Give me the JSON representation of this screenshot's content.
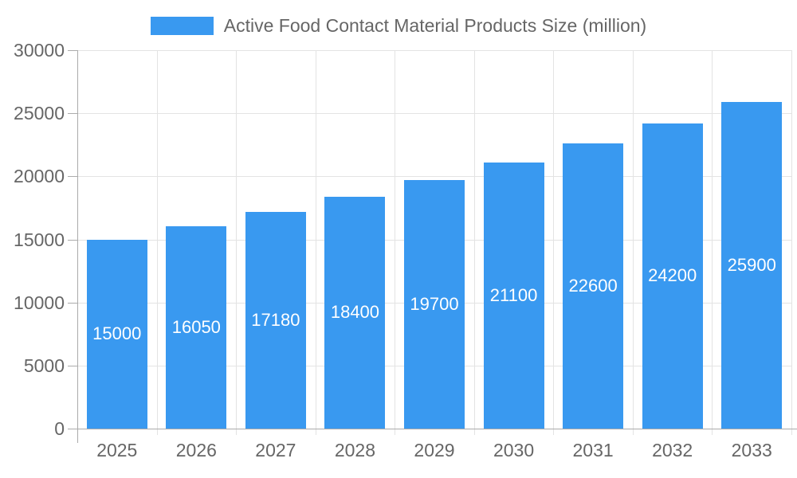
{
  "legend": {
    "label": "Active Food Contact Material Products Size (million)"
  },
  "chart_data": {
    "type": "bar",
    "title": "Active Food Contact Material Products Size (million)",
    "series_name": "Active Food Contact Material Products Size (million)",
    "categories": [
      "2025",
      "2026",
      "2027",
      "2028",
      "2029",
      "2030",
      "2031",
      "2032",
      "2033"
    ],
    "values": [
      15000,
      16050,
      17180,
      18400,
      19700,
      21100,
      22600,
      24200,
      25900
    ],
    "bar_labels": [
      "15000",
      "16050",
      "17180",
      "18400",
      "19700",
      "21100",
      "22600",
      "24200",
      "25900"
    ],
    "xlabel": "",
    "ylabel": "",
    "ylim": [
      0,
      30000
    ],
    "yticks": [
      0,
      5000,
      10000,
      15000,
      20000,
      25000,
      30000
    ],
    "grid": "on",
    "legend_position": "top-center",
    "colors": {
      "bar": "#3999F0",
      "bar_label_text": "#FFFFFF",
      "axis_line": "#ABABAB",
      "grid_line": "#E3E3E3",
      "tick_text": "#666666",
      "legend_text": "#666666",
      "background": "#FFFFFF"
    }
  }
}
